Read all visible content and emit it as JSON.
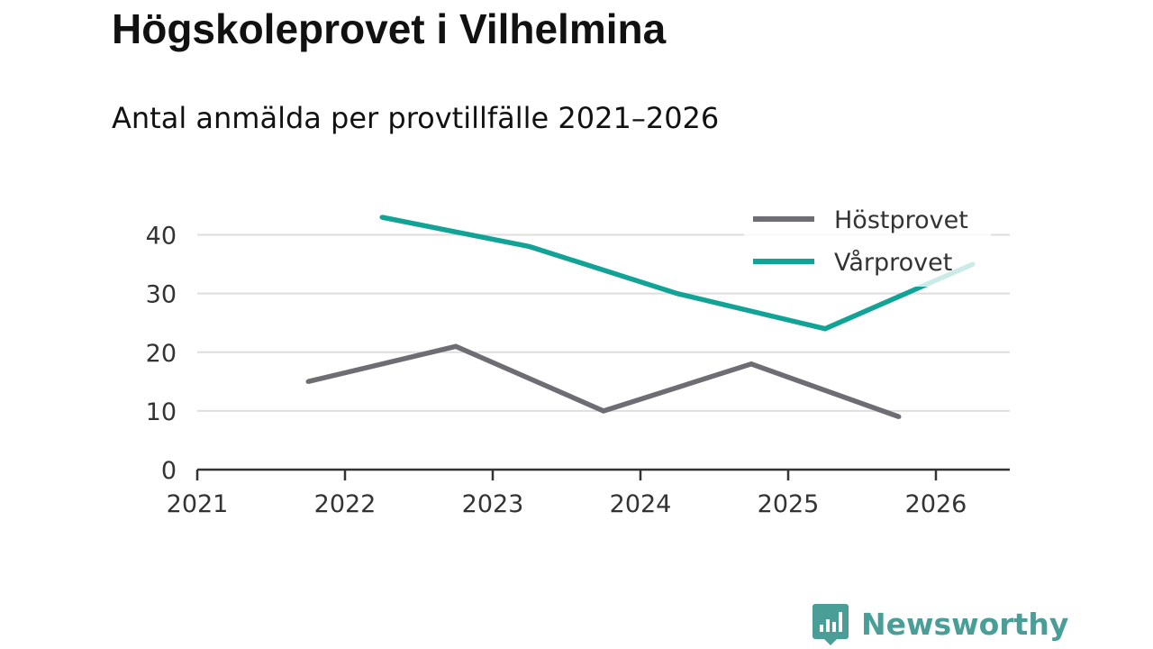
{
  "title": "Högskoleprovet i Vilhelmina",
  "subtitle": "Antal anmälda per provtillfälle 2021–2026",
  "brand": {
    "name": "Newsworthy",
    "color": "#4a9e98"
  },
  "chart_data": {
    "type": "line",
    "title": "Högskoleprovet i Vilhelmina",
    "subtitle": "Antal anmälda per provtillfälle 2021–2026",
    "xlabel": "",
    "ylabel": "",
    "xlim": [
      2021,
      2026.5
    ],
    "ylim": [
      0,
      45
    ],
    "x_ticks": [
      2021,
      2022,
      2023,
      2024,
      2025,
      2026
    ],
    "x_tick_labels": [
      "2021",
      "2022",
      "2023",
      "2024",
      "2025",
      "2026"
    ],
    "y_ticks": [
      0,
      10,
      20,
      30,
      40
    ],
    "y_tick_labels": [
      "0",
      "10",
      "20",
      "30",
      "40"
    ],
    "grid": "horizontal",
    "legend_position": "top-right",
    "series": [
      {
        "name": "Höstprovet",
        "color": "#6e6d73",
        "x": [
          2021.75,
          2022.75,
          2023.75,
          2024.75,
          2025.75
        ],
        "values": [
          15,
          21,
          10,
          18,
          9
        ]
      },
      {
        "name": "Vårprovet",
        "color": "#12a397",
        "x": [
          2022.25,
          2023.25,
          2024.25,
          2025.25,
          2026.25
        ],
        "values": [
          43,
          38,
          30,
          24,
          35
        ]
      }
    ]
  }
}
